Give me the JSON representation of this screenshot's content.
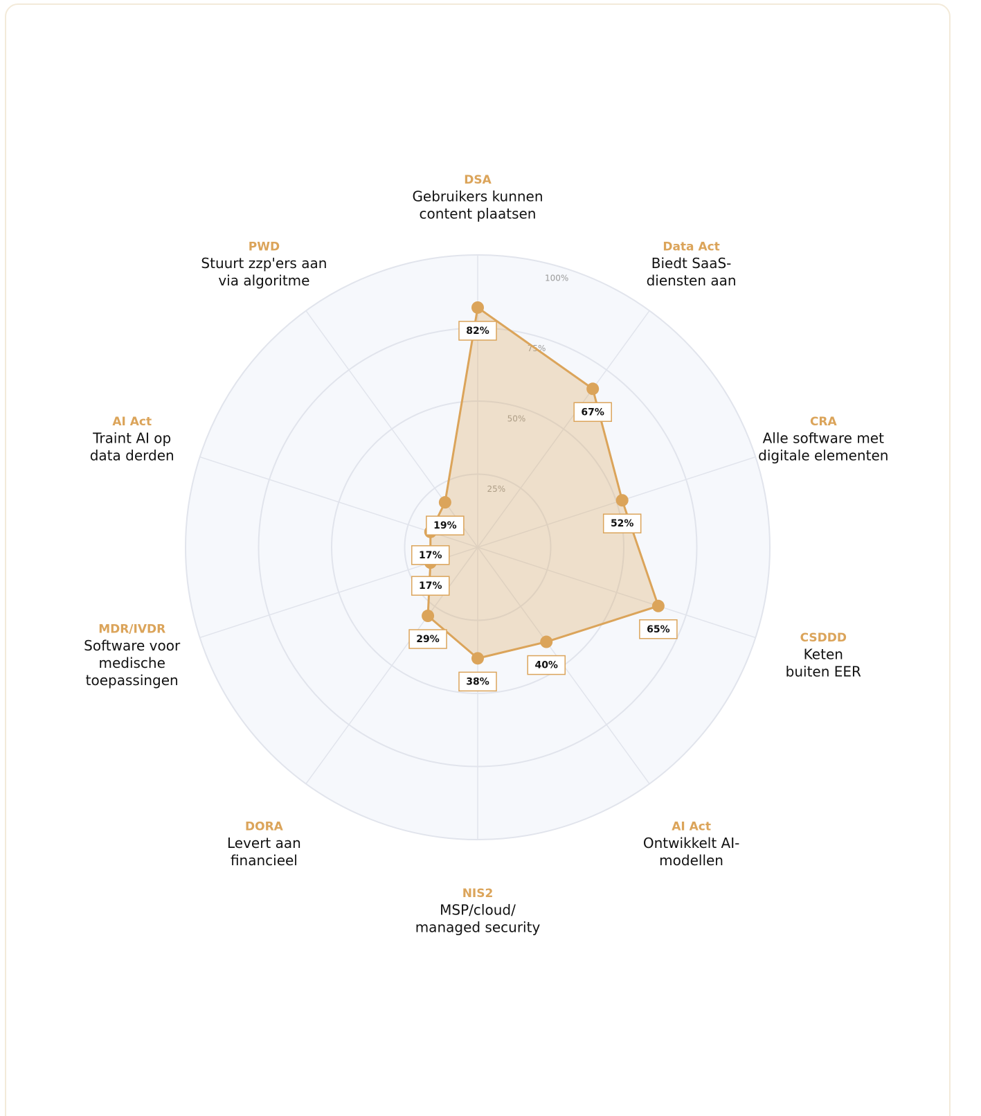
{
  "chart_data": {
    "type": "radar",
    "categories": [
      "DSA",
      "Data Act",
      "CRA",
      "CSDDD",
      "AI Act",
      "NIS2",
      "DORA",
      "MDR/IVDR",
      "AI Act",
      "PWD"
    ],
    "descriptions": [
      [
        "Gebruikers kunnen",
        "content plaatsen"
      ],
      [
        "Biedt SaaS-",
        "diensten aan"
      ],
      [
        "Alle software met",
        "digitale elementen"
      ],
      [
        "Keten",
        "buiten EER"
      ],
      [
        "Ontwikkelt AI-",
        "modellen"
      ],
      [
        "MSP/cloud/",
        "managed security"
      ],
      [
        "Levert aan",
        "financieel"
      ],
      [
        "Software voor",
        "medische",
        "toepassingen"
      ],
      [
        "Traint AI op",
        "data derden"
      ],
      [
        "Stuurt zzp'ers aan",
        "via algoritme"
      ]
    ],
    "values": [
      82,
      67,
      52,
      65,
      40,
      38,
      29,
      17,
      17,
      19
    ],
    "value_labels": [
      "82%",
      "67%",
      "52%",
      "65%",
      "40%",
      "38%",
      "29%",
      "17%",
      "17%",
      "19%"
    ],
    "color": "#dba45a",
    "ylim": [
      0,
      100
    ],
    "yticks": [
      {
        "value": 25,
        "label": "25%"
      },
      {
        "value": 50,
        "label": "50%"
      },
      {
        "value": 75,
        "label": "75%"
      },
      {
        "value": 100,
        "label": "100%"
      }
    ],
    "grid": true
  }
}
